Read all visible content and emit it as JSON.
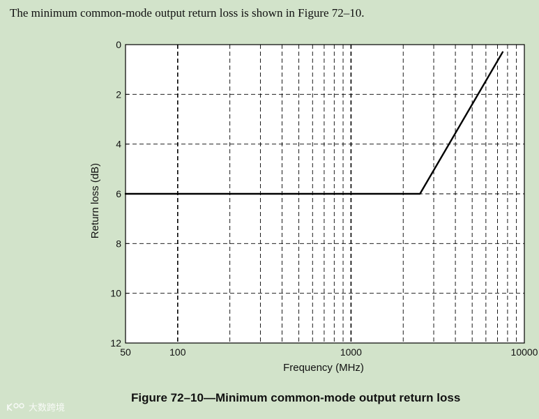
{
  "intro_text": "The minimum common-mode output return loss is shown in Figure 72–10.",
  "caption": "Figure 72–10—Minimum common-mode output return loss",
  "watermark_text": "大数跨境",
  "colors": {
    "background": "#d2e3ca",
    "plot_area": "#ffffff",
    "line": "#000000"
  },
  "chart_data": {
    "type": "line",
    "xlabel": "Frequency (MHz)",
    "ylabel": "Return loss (dB)",
    "x_scale": "log",
    "xlim": [
      50,
      10000
    ],
    "ylim": [
      0,
      12
    ],
    "y_inverted": true,
    "grid": true,
    "grid_style": "dashed",
    "x_ticks": [
      50,
      100,
      1000,
      10000
    ],
    "x_tick_labels": [
      "50",
      "100",
      "1000",
      "10000"
    ],
    "x_minor_ticks": [
      200,
      300,
      400,
      500,
      600,
      700,
      800,
      900,
      2000,
      3000,
      4000,
      5000,
      6000,
      7000,
      8000,
      9000
    ],
    "y_ticks": [
      0,
      2,
      4,
      6,
      8,
      10,
      12
    ],
    "y_tick_labels": [
      "0",
      "2",
      "4",
      "6",
      "8",
      "10",
      "12"
    ],
    "series": [
      {
        "x": [
          50,
          2500,
          7500
        ],
        "y": [
          6,
          6,
          0.3
        ]
      }
    ]
  }
}
